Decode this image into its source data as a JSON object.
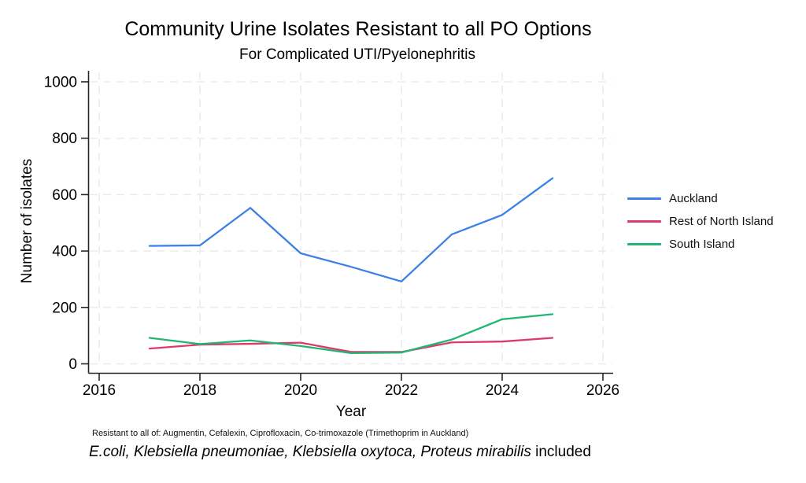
{
  "chart_data": {
    "type": "line",
    "title": "Community Urine Isolates Resistant to all PO Options",
    "subtitle": "For Complicated UTI/Pyelonephritis",
    "xlabel": "Year",
    "ylabel": "Number of isolates",
    "x": [
      2017,
      2018,
      2019,
      2020,
      2021,
      2022,
      2023,
      2024,
      2025
    ],
    "series": [
      {
        "name": "Auckland",
        "color": "#3D80E8",
        "values": [
          418,
          420,
          553,
          392,
          344,
          292,
          459,
          528,
          658
        ]
      },
      {
        "name": "Rest of North Island",
        "color": "#DC3A6B",
        "values": [
          54,
          68,
          71,
          75,
          42,
          42,
          76,
          79,
          92
        ]
      },
      {
        "name": "South Island",
        "color": "#21B573",
        "values": [
          92,
          70,
          83,
          63,
          38,
          40,
          86,
          158,
          176
        ]
      }
    ],
    "xlim": [
      2016,
      2026
    ],
    "ylim": [
      0,
      1000
    ],
    "xticks": [
      2016,
      2018,
      2020,
      2022,
      2024,
      2026
    ],
    "yticks": [
      0,
      200,
      400,
      600,
      800,
      1000
    ],
    "grid": "dashed-light-gray",
    "grid_color": "#ebebeb",
    "axis_color": "#262626",
    "legend_position": "right"
  },
  "footnotes": {
    "line1": "Resistant to all of: Augmentin, Cefalexin, Ciprofloxacin, Co-trimoxazole (Trimethoprim in Auckland)",
    "line2_italic": "E.coli, Klebsiella pneumoniae, Klebsiella oxytoca, Proteus mirabilis",
    "line2_regular": " included"
  }
}
